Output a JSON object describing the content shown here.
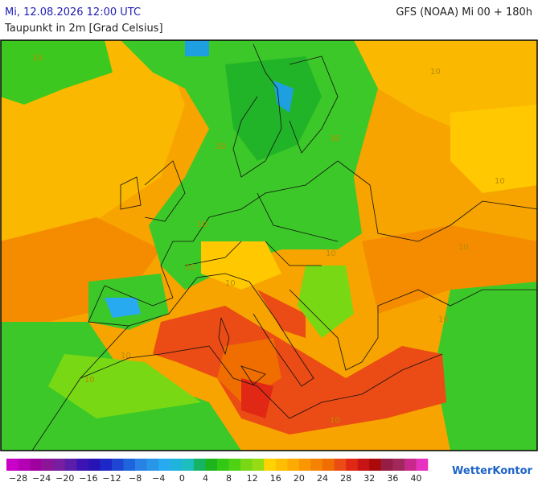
{
  "header": {
    "date": "Mi, 12.08.2026 12:00 UTC",
    "model": "GFS (NOAA) Mi 00 + 180h",
    "title": "Taupunkt in 2m [Grad Celsius]"
  },
  "map": {
    "contour_labels": [
      "10",
      "10",
      "10",
      "10",
      "10",
      "10",
      "10",
      "10",
      "10",
      "10",
      "10",
      "10",
      "10",
      "10"
    ]
  },
  "scale": {
    "colors": [
      "#c800c8",
      "#b400b4",
      "#a000a0",
      "#8c1496",
      "#781ea0",
      "#5a1eaa",
      "#3c14b4",
      "#2814b4",
      "#1e28c8",
      "#1e46d2",
      "#1e64dc",
      "#2882e6",
      "#2896e6",
      "#28aaf0",
      "#1eb4dc",
      "#1ebebe",
      "#14b464",
      "#1eb41e",
      "#32c814",
      "#50d214",
      "#78d814",
      "#96dc14",
      "#ffd200",
      "#ffbe00",
      "#ffaa00",
      "#fa9600",
      "#f58200",
      "#f06e00",
      "#eb4b14",
      "#e12814",
      "#c81414",
      "#aa0a0a",
      "#961e46",
      "#a0285a",
      "#c8288c",
      "#e632be"
    ],
    "labels": [
      {
        "value": -28,
        "label": "−28"
      },
      {
        "value": -24,
        "label": "−24"
      },
      {
        "value": -20,
        "label": "−20"
      },
      {
        "value": -16,
        "label": "−16"
      },
      {
        "value": -12,
        "label": "−12"
      },
      {
        "value": -8,
        "label": "−8"
      },
      {
        "value": -4,
        "label": "−4"
      },
      0,
      4,
      8,
      12,
      16,
      20,
      24,
      28,
      32,
      36,
      40
    ]
  },
  "brand": "WetterKontor"
}
